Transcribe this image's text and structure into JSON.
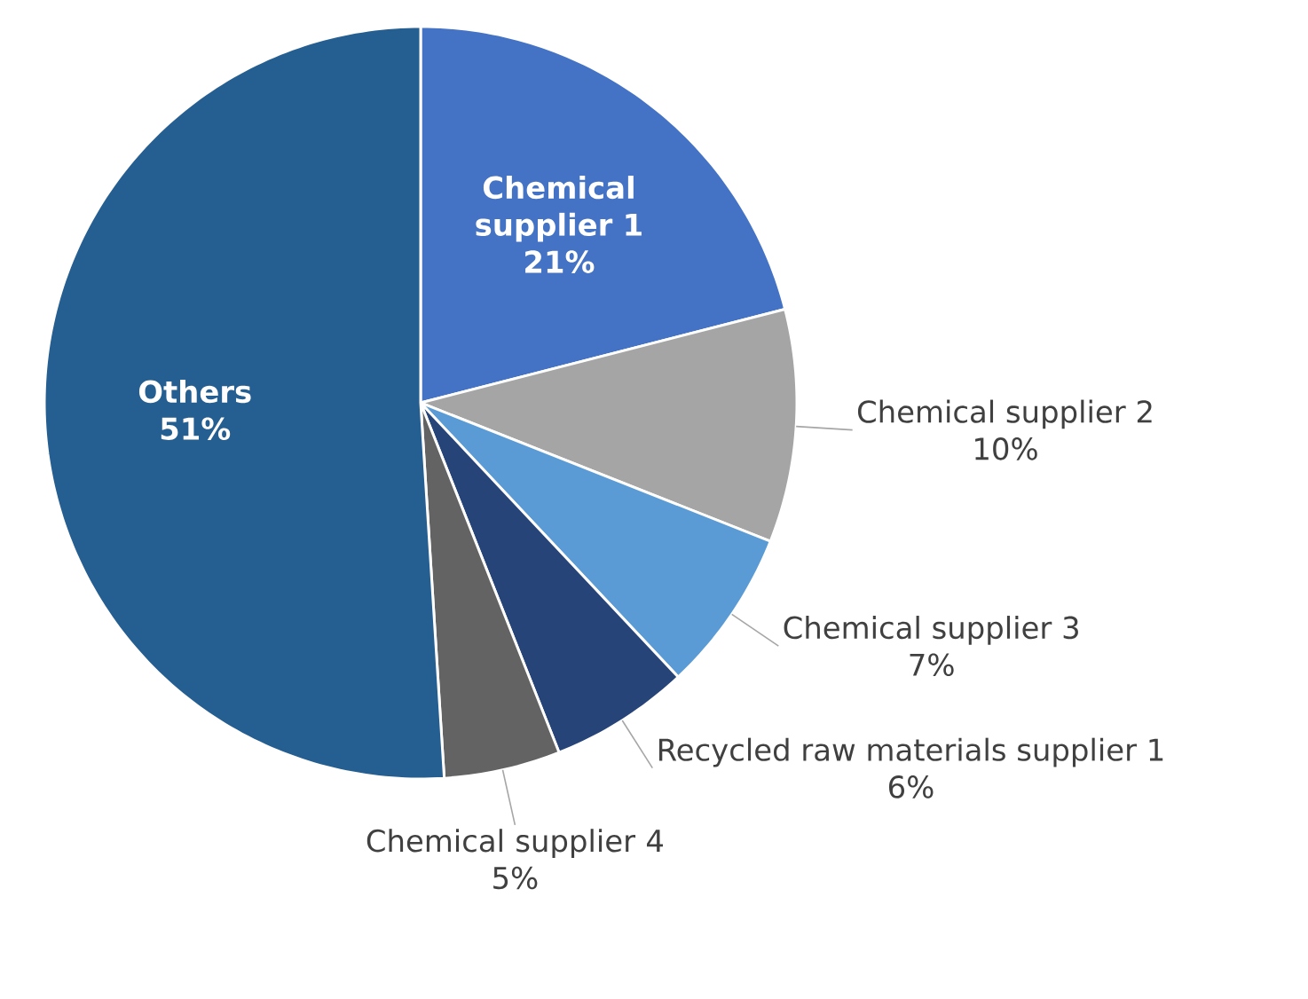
{
  "chart_data": {
    "type": "pie",
    "categories": [
      "Chemical supplier 1",
      "Chemical supplier 2",
      "Chemical supplier 3",
      "Recycled raw materials supplier 1",
      "Chemical supplier 4",
      "Others"
    ],
    "values": [
      21,
      10,
      7,
      6,
      5,
      51
    ],
    "value_labels": [
      "21%",
      "10%",
      "7%",
      "6%",
      "5%",
      "51%"
    ],
    "colors": [
      "#4472c4",
      "#a5a5a5",
      "#5b9bd5",
      "#264478",
      "#636363",
      "#255e91"
    ]
  }
}
